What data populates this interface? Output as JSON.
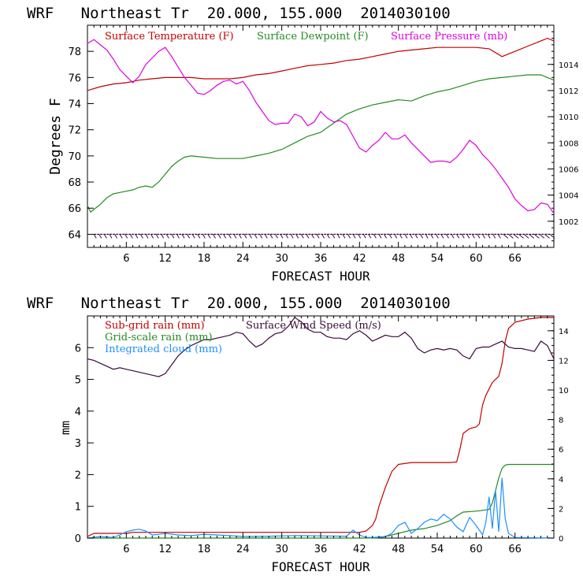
{
  "chart_data": [
    {
      "type": "line",
      "title": "WRF   Northeast Tr  20.000, 155.000  2014030100",
      "xlabel": "FORECAST HOUR",
      "ylabel": "Degrees F",
      "xlim": [
        0,
        72
      ],
      "xticks": [
        "6",
        "12",
        "18",
        "24",
        "30",
        "36",
        "42",
        "48",
        "54",
        "60",
        "66"
      ],
      "ylim": [
        63,
        80
      ],
      "yticks": [
        "64",
        "66",
        "68",
        "70",
        "72",
        "74",
        "76",
        "78"
      ],
      "y2lim": [
        1000,
        1017
      ],
      "y2ticks": [
        "1002",
        "1004",
        "1006",
        "1008",
        "1010",
        "1012",
        "1014"
      ],
      "legend": [
        "Surface Temperature (F)",
        "Surface Dewpoint (F)",
        "Surface Pressure (mb)"
      ],
      "colors": {
        "temperature": "#c00000",
        "dewpoint": "#228b22",
        "pressure": "#e000e0",
        "barbs": "#3a0a3a"
      },
      "series": [
        {
          "name": "Surface Temperature (F)",
          "axis": "left",
          "color": "#c00000",
          "x": [
            0,
            2,
            4,
            6,
            8,
            10,
            12,
            14,
            16,
            18,
            20,
            22,
            24,
            26,
            28,
            30,
            32,
            34,
            36,
            38,
            40,
            42,
            44,
            46,
            48,
            50,
            52,
            54,
            56,
            58,
            60,
            62,
            63,
            64,
            66,
            68,
            70,
            71,
            72
          ],
          "y": [
            75.0,
            75.3,
            75.5,
            75.6,
            75.8,
            75.9,
            76.0,
            76.0,
            76.0,
            75.9,
            75.9,
            75.9,
            76.0,
            76.2,
            76.3,
            76.5,
            76.7,
            76.9,
            77.0,
            77.1,
            77.3,
            77.4,
            77.6,
            77.8,
            78.0,
            78.1,
            78.2,
            78.3,
            78.3,
            78.3,
            78.3,
            78.2,
            77.9,
            77.6,
            78.0,
            78.4,
            78.8,
            79.0,
            78.8
          ]
        },
        {
          "name": "Surface Dewpoint (F)",
          "axis": "left",
          "color": "#228b22",
          "x": [
            0,
            0.5,
            1,
            2,
            3,
            4,
            5,
            6,
            7,
            8,
            9,
            10,
            11,
            12,
            13,
            14,
            15,
            16,
            18,
            20,
            22,
            24,
            26,
            28,
            30,
            32,
            34,
            36,
            38,
            40,
            42,
            44,
            46,
            48,
            50,
            52,
            54,
            56,
            58,
            60,
            62,
            64,
            66,
            68,
            70,
            71,
            72
          ],
          "y": [
            66.2,
            65.7,
            65.9,
            66.3,
            66.8,
            67.1,
            67.2,
            67.3,
            67.4,
            67.6,
            67.7,
            67.6,
            68.0,
            68.6,
            69.2,
            69.6,
            69.9,
            70.0,
            69.9,
            69.8,
            69.8,
            69.8,
            70.0,
            70.2,
            70.5,
            71.0,
            71.5,
            71.8,
            72.5,
            73.2,
            73.6,
            73.9,
            74.1,
            74.3,
            74.2,
            74.6,
            74.9,
            75.1,
            75.4,
            75.7,
            75.9,
            76.0,
            76.1,
            76.2,
            76.2,
            76.0,
            75.8
          ]
        },
        {
          "name": "Surface Pressure (mb)",
          "axis": "right",
          "color": "#e000e0",
          "x": [
            0,
            1,
            2,
            3,
            4,
            5,
            6,
            7,
            8,
            9,
            10,
            11,
            12,
            13,
            14,
            15,
            16,
            17,
            18,
            19,
            20,
            21,
            22,
            23,
            24,
            25,
            26,
            27,
            28,
            29,
            30,
            31,
            32,
            33,
            34,
            35,
            36,
            37,
            38,
            39,
            40,
            41,
            42,
            43,
            44,
            45,
            46,
            47,
            48,
            49,
            50,
            51,
            52,
            53,
            54,
            55,
            56,
            57,
            58,
            59,
            60,
            61,
            62,
            63,
            64,
            65,
            66,
            67,
            68,
            69,
            70,
            71,
            72
          ],
          "y": [
            1015.6,
            1015.9,
            1015.5,
            1015.1,
            1014.4,
            1013.6,
            1013.1,
            1012.6,
            1013.1,
            1014.0,
            1014.5,
            1015.0,
            1015.3,
            1014.6,
            1013.8,
            1013.0,
            1012.4,
            1011.8,
            1011.7,
            1012.0,
            1012.4,
            1012.7,
            1012.8,
            1012.5,
            1012.7,
            1012.0,
            1011.1,
            1010.4,
            1009.7,
            1009.4,
            1009.5,
            1009.5,
            1010.2,
            1010.0,
            1009.3,
            1009.6,
            1010.4,
            1009.9,
            1009.6,
            1009.7,
            1009.4,
            1008.5,
            1007.6,
            1007.3,
            1007.8,
            1008.2,
            1008.8,
            1008.3,
            1008.3,
            1008.6,
            1008.0,
            1007.5,
            1007.0,
            1006.5,
            1006.6,
            1006.6,
            1006.5,
            1006.9,
            1007.5,
            1008.2,
            1007.8,
            1007.1,
            1006.6,
            1006.0,
            1005.3,
            1004.6,
            1003.7,
            1003.2,
            1002.8,
            1002.9,
            1003.4,
            1003.3,
            1002.6
          ]
        }
      ]
    },
    {
      "type": "line",
      "title": "WRF   Northeast Tr  20.000, 155.000  2014030100",
      "xlabel": "FORECAST HOUR",
      "ylabel": "mm",
      "xlim": [
        0,
        72
      ],
      "xticks": [
        "6",
        "12",
        "18",
        "24",
        "30",
        "36",
        "42",
        "48",
        "54",
        "60",
        "66"
      ],
      "ylim": [
        0,
        7
      ],
      "yticks": [
        "0",
        "1",
        "2",
        "3",
        "4",
        "5",
        "6"
      ],
      "y2lim": [
        0,
        15
      ],
      "y2ticks": [
        "0",
        "2",
        "4",
        "6",
        "8",
        "10",
        "12",
        "14"
      ],
      "legend": [
        "Sub-grid rain (mm)",
        "Grid-scale rain (mm)",
        "Integrated cloud (mm)",
        "Surface Wind Speed (m/s)"
      ],
      "colors": {
        "subgrid": "#c00000",
        "gridscale": "#228b22",
        "cloud": "#1e90ff",
        "wind": "#3a0a3a"
      },
      "series": [
        {
          "name": "Sub-grid rain (mm)",
          "axis": "left",
          "color": "#c00000",
          "x": [
            0,
            1,
            6,
            7,
            42,
            43,
            44,
            44.5,
            45,
            46,
            47,
            48,
            50,
            54,
            55,
            56,
            57,
            57.5,
            58,
            59,
            60,
            60.5,
            61,
            61.5,
            62,
            62.5,
            63,
            63.5,
            64,
            64.5,
            65,
            66,
            68,
            70,
            72
          ],
          "y": [
            0.05,
            0.15,
            0.15,
            0.18,
            0.18,
            0.22,
            0.4,
            0.6,
            1.0,
            1.6,
            2.1,
            2.32,
            2.38,
            2.38,
            2.38,
            2.38,
            2.4,
            2.8,
            3.3,
            3.45,
            3.5,
            3.6,
            4.2,
            4.5,
            4.7,
            4.9,
            5.0,
            5.1,
            5.5,
            6.2,
            6.6,
            6.8,
            6.9,
            6.95,
            6.95
          ]
        },
        {
          "name": "Grid-scale rain (mm)",
          "axis": "left",
          "color": "#228b22",
          "x": [
            0,
            43,
            45,
            46,
            48,
            50,
            52,
            54,
            56,
            57,
            58,
            60,
            62,
            62.5,
            63,
            63.5,
            64,
            64.5,
            65,
            66,
            72
          ],
          "y": [
            0,
            0,
            0.01,
            0.05,
            0.15,
            0.25,
            0.3,
            0.4,
            0.55,
            0.7,
            0.82,
            0.85,
            0.9,
            1.1,
            1.5,
            1.9,
            2.2,
            2.3,
            2.32,
            2.32,
            2.32
          ]
        },
        {
          "name": "Integrated cloud (mm)",
          "axis": "left",
          "color": "#1e90ff",
          "x": [
            0,
            2,
            4,
            5,
            6,
            7,
            8,
            9,
            10,
            11,
            12,
            14,
            16,
            18,
            20,
            22,
            24,
            28,
            32,
            36,
            40,
            41,
            42,
            43,
            44,
            46,
            47,
            48,
            49,
            50,
            51,
            52,
            53,
            54,
            55,
            56,
            57,
            58,
            59,
            60,
            61,
            61.5,
            62,
            62.5,
            63,
            63.5,
            64,
            64.5,
            65,
            66,
            72
          ],
          "y": [
            0,
            0.05,
            0.02,
            0.1,
            0.2,
            0.25,
            0.28,
            0.22,
            0.1,
            0.12,
            0.15,
            0.1,
            0.08,
            0.12,
            0.1,
            0.08,
            0.05,
            0.06,
            0.08,
            0.07,
            0.06,
            0.25,
            0.1,
            0.02,
            0.02,
            0.05,
            0.15,
            0.4,
            0.5,
            0.15,
            0.3,
            0.5,
            0.6,
            0.55,
            0.75,
            0.6,
            0.35,
            0.2,
            0.65,
            0.4,
            0.1,
            0.5,
            1.3,
            0.3,
            1.5,
            0.2,
            1.9,
            0.6,
            0.15,
            0.02,
            0
          ]
        },
        {
          "name": "Surface Wind Speed (m/s)",
          "axis": "right",
          "color": "#3a0a3a",
          "x": [
            0,
            1,
            2,
            3,
            4,
            5,
            6,
            7,
            8,
            9,
            10,
            11,
            12,
            13,
            14,
            15,
            16,
            17,
            18,
            19,
            20,
            21,
            22,
            23,
            24,
            25,
            26,
            27,
            28,
            29,
            30,
            31,
            32,
            33,
            34,
            35,
            36,
            37,
            38,
            39,
            40,
            41,
            42,
            43,
            44,
            45,
            46,
            47,
            48,
            49,
            50,
            51,
            52,
            53,
            54,
            55,
            56,
            57,
            58,
            59,
            60,
            61,
            62,
            63,
            64,
            65,
            66,
            67,
            68,
            69,
            70,
            71,
            72
          ],
          "y": [
            12.1,
            12.0,
            11.8,
            11.6,
            11.4,
            11.5,
            11.4,
            11.3,
            11.2,
            11.1,
            11.0,
            10.9,
            11.1,
            11.7,
            12.3,
            12.7,
            13.0,
            13.2,
            13.4,
            13.4,
            13.5,
            13.6,
            13.7,
            13.9,
            13.8,
            13.3,
            12.9,
            13.1,
            13.5,
            13.8,
            13.9,
            14.3,
            14.9,
            14.6,
            14.1,
            13.9,
            13.9,
            13.6,
            13.5,
            13.5,
            13.4,
            13.8,
            14.0,
            13.7,
            13.3,
            13.5,
            13.7,
            13.6,
            13.6,
            13.9,
            13.5,
            12.8,
            12.5,
            12.7,
            12.8,
            12.7,
            12.8,
            12.7,
            12.3,
            12.1,
            12.8,
            12.9,
            12.9,
            13.1,
            13.3,
            12.9,
            12.8,
            12.8,
            12.7,
            12.6,
            13.3,
            13.0,
            12.1
          ]
        }
      ]
    }
  ]
}
